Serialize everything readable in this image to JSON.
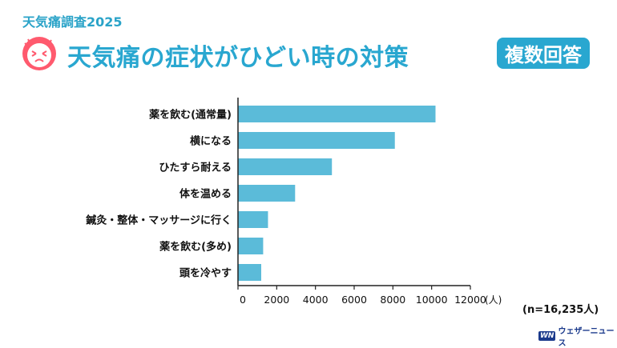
{
  "header": {
    "eyebrow": "天気痛調査2025",
    "title": "天気痛の症状がひどい時の対策",
    "badge": "複数回答"
  },
  "note": "(n=16,235人)",
  "brand": {
    "mark": "WN",
    "name": "ウェザーニュース"
  },
  "colors": {
    "accent": "#29a7d0",
    "bar": "#5bbbd9",
    "face": "#ff5a6e"
  },
  "chart_data": {
    "type": "bar",
    "orientation": "horizontal",
    "categories": [
      "薬を飲む(通常量)",
      "横になる",
      "ひたすら耐える",
      "体を温める",
      "鍼灸・整体・マッサージに行く",
      "薬を飲む(多め)",
      "頭を冷やす"
    ],
    "values": [
      10200,
      8100,
      4850,
      2950,
      1550,
      1300,
      1200
    ],
    "ticks": [
      0,
      2000,
      4000,
      6000,
      8000,
      10000,
      12000
    ],
    "xlim": [
      0,
      12000
    ],
    "unit_label": "(人)"
  }
}
